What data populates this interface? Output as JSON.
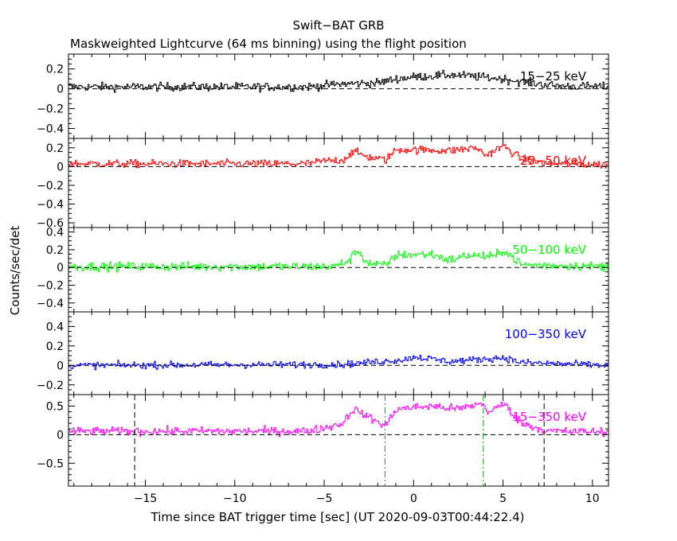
{
  "chart_data": {
    "type": "line",
    "title": "Swift−BAT GRB",
    "subtitle": "Maskweighted Lightcurve (64 ms binning) using the flight position",
    "xlabel": "Time since BAT trigger time [sec] (UT 2020-09-03T00:44:22.4)",
    "ylabel": "Counts/sec/det",
    "xlim": [
      -19.3,
      10.9
    ],
    "x_ticks": [
      -15,
      -10,
      -5,
      0,
      5,
      10
    ],
    "x_tick_labels": [
      "−15",
      "−10",
      "−5",
      "0",
      "5",
      "10"
    ],
    "bin_seconds": 0.064,
    "vertical_markers": [
      {
        "x": -15.6,
        "color": "#000000",
        "style": "dashed",
        "panels": "bottom"
      },
      {
        "x": -1.6,
        "color": "#00aa00",
        "style": "dashdot",
        "panels": "bottom"
      },
      {
        "x": 3.9,
        "color": "#00aa00",
        "style": "dashdot",
        "panels": "bottom"
      },
      {
        "x": 7.3,
        "color": "#000000",
        "style": "dashed",
        "panels": "bottom"
      }
    ],
    "panels": [
      {
        "series_name": "15−25 keV",
        "color": "#000000",
        "ylim": [
          -0.5,
          0.35
        ],
        "y_ticks": [
          0.2,
          0,
          -0.2,
          -0.4
        ],
        "y_tick_labels": [
          "0.2",
          "0",
          "−0.2",
          "−0.4"
        ],
        "noise": 0.03,
        "profile": [
          [
            -19.3,
            0.02
          ],
          [
            -6,
            0.02
          ],
          [
            -4,
            0.05
          ],
          [
            -2,
            0.06
          ],
          [
            -1,
            0.1
          ],
          [
            0,
            0.12
          ],
          [
            2,
            0.14
          ],
          [
            3,
            0.13
          ],
          [
            5,
            0.1
          ],
          [
            6,
            0.07
          ],
          [
            8,
            0.03
          ],
          [
            10.9,
            0.02
          ]
        ]
      },
      {
        "series_name": "25−50 keV",
        "color": "#ff0000",
        "ylim": [
          -0.65,
          0.3
        ],
        "y_ticks": [
          0.2,
          0,
          -0.2,
          -0.4,
          -0.6
        ],
        "y_tick_labels": [
          "0.2",
          "0",
          "−0.2",
          "−0.4",
          "−0.6"
        ],
        "noise": 0.03,
        "profile": [
          [
            -19.3,
            0.03
          ],
          [
            -6,
            0.03
          ],
          [
            -5,
            0.06
          ],
          [
            -4,
            0.07
          ],
          [
            -3.4,
            0.16
          ],
          [
            -2.5,
            0.1
          ],
          [
            -1.6,
            0.07
          ],
          [
            -1,
            0.18
          ],
          [
            0,
            0.18
          ],
          [
            2,
            0.17
          ],
          [
            3.5,
            0.2
          ],
          [
            4,
            0.12
          ],
          [
            5,
            0.22
          ],
          [
            6,
            0.08
          ],
          [
            7.5,
            0.03
          ],
          [
            10.9,
            0.02
          ]
        ]
      },
      {
        "series_name": "50−100 keV",
        "color": "#00ff00",
        "ylim": [
          -0.5,
          0.45
        ],
        "y_ticks": [
          0.4,
          0.2,
          0,
          -0.2,
          -0.4
        ],
        "y_tick_labels": [
          "0.4",
          "0.2",
          "0",
          "−0.2",
          "−0.4"
        ],
        "noise": 0.035,
        "profile": [
          [
            -19.3,
            0.01
          ],
          [
            -4.5,
            0.01
          ],
          [
            -3.6,
            0.08
          ],
          [
            -3.2,
            0.2
          ],
          [
            -2.6,
            0.05
          ],
          [
            -1.6,
            0.02
          ],
          [
            -1,
            0.14
          ],
          [
            1,
            0.15
          ],
          [
            2,
            0.08
          ],
          [
            3,
            0.14
          ],
          [
            4.5,
            0.12
          ],
          [
            5,
            0.2
          ],
          [
            6,
            0.03
          ],
          [
            10.9,
            0.01
          ]
        ]
      },
      {
        "series_name": "100−350 keV",
        "color": "#0000ff",
        "ylim": [
          -0.3,
          0.55
        ],
        "y_ticks": [
          0.4,
          0.2,
          0,
          -0.2
        ],
        "y_tick_labels": [
          "0.4",
          "0.2",
          "0",
          "−0.2"
        ],
        "noise": 0.025,
        "profile": [
          [
            -19.3,
            0.0
          ],
          [
            -4,
            0.01
          ],
          [
            -0.5,
            0.06
          ],
          [
            0,
            0.09
          ],
          [
            2,
            0.04
          ],
          [
            5,
            0.08
          ],
          [
            6,
            0.03
          ],
          [
            10.9,
            0.0
          ]
        ]
      },
      {
        "series_name": "15−350 keV",
        "color": "#ff00ff",
        "ylim": [
          -0.9,
          0.7
        ],
        "y_ticks": [
          0.5,
          0,
          -0.5
        ],
        "y_tick_labels": [
          "0.5",
          "0",
          "−0.5"
        ],
        "noise": 0.05,
        "profile": [
          [
            -19.3,
            0.06
          ],
          [
            -6,
            0.06
          ],
          [
            -5,
            0.12
          ],
          [
            -4,
            0.2
          ],
          [
            -3.4,
            0.45
          ],
          [
            -2.5,
            0.3
          ],
          [
            -1.6,
            0.15
          ],
          [
            -1,
            0.45
          ],
          [
            1,
            0.5
          ],
          [
            2.5,
            0.45
          ],
          [
            3.8,
            0.55
          ],
          [
            4.2,
            0.38
          ],
          [
            5,
            0.55
          ],
          [
            6,
            0.2
          ],
          [
            7.5,
            0.06
          ],
          [
            10.9,
            0.05
          ]
        ]
      }
    ]
  }
}
